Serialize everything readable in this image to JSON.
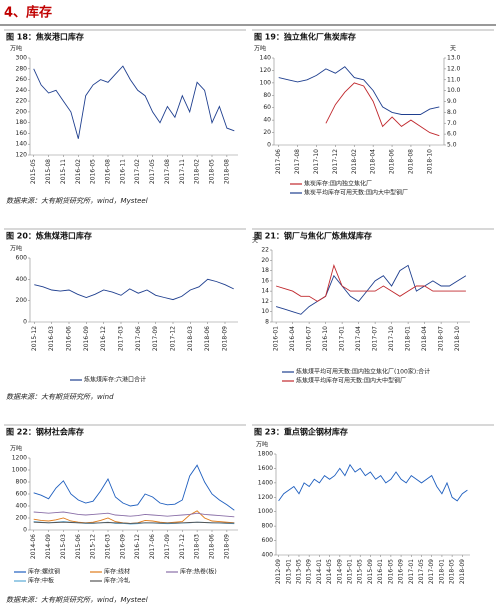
{
  "header": {
    "title": "4、库存"
  },
  "chart_data": [
    {
      "type": "line",
      "title": "图 18：焦炭港口库存",
      "unit": "万吨",
      "source": "数据来源：大有期货研究所，wind，Mysteel",
      "categories": [
        "2015-05",
        null,
        "2015-08",
        null,
        "2015-11",
        null,
        "2016-02",
        null,
        "2016-05",
        null,
        "2016-08",
        null,
        "2016-11",
        null,
        "2017-02",
        null,
        "2017-05",
        null,
        "2017-08",
        null,
        "2017-11",
        null,
        "2018-02",
        null,
        "2018-05",
        null,
        "2018-08",
        null
      ],
      "series": [
        {
          "name": null,
          "color": "#1f3f8f",
          "values": [
            280,
            250,
            235,
            240,
            220,
            200,
            150,
            230,
            250,
            260,
            255,
            270,
            285,
            260,
            240,
            230,
            200,
            180,
            210,
            190,
            230,
            200,
            255,
            240,
            180,
            210,
            170,
            165
          ]
        }
      ],
      "ylim": [
        120,
        300
      ],
      "yticks": [
        120,
        140,
        160,
        180,
        200,
        220,
        240,
        260,
        280,
        300
      ]
    },
    {
      "type": "line",
      "title": "图 19：独立焦化厂焦炭库存",
      "unit": "万吨",
      "unit2": "天",
      "categories": [
        "2017-06",
        null,
        "2017-08",
        null,
        "2017-10",
        null,
        "2017-12",
        null,
        "2018-02",
        null,
        "2018-04",
        null,
        "2018-06",
        null,
        "2018-08",
        null,
        "2018-10",
        null
      ],
      "series": [
        {
          "name": "焦炭库存:国内独立焦化厂",
          "color": "#c0282d",
          "values": [
            null,
            null,
            null,
            null,
            null,
            35,
            65,
            85,
            100,
            95,
            70,
            30,
            45,
            30,
            40,
            30,
            20,
            15
          ]
        },
        {
          "name": "焦炭平均库存可用天数:国内大中型钢厂",
          "color": "#1f3f8f",
          "axis": "y2",
          "values": [
            11.2,
            11.0,
            10.8,
            11.0,
            11.4,
            12.0,
            11.6,
            12.2,
            11.2,
            11.0,
            10.0,
            8.5,
            8.0,
            7.8,
            7.8,
            7.8,
            8.3,
            8.5
          ]
        }
      ],
      "ylim": [
        0,
        140
      ],
      "yticks": [
        0,
        20,
        40,
        60,
        80,
        100,
        120,
        140
      ],
      "y2lim": [
        5,
        13
      ],
      "y2ticks": [
        {
          "value": 5,
          "label": "5.0"
        },
        {
          "value": 6,
          "label": "6.0"
        },
        {
          "value": 7,
          "label": "7.0"
        },
        {
          "value": 8,
          "label": "8.0"
        },
        {
          "value": 9,
          "label": "9.0"
        },
        {
          "value": 10,
          "label": "10.0"
        },
        {
          "value": 11,
          "label": "11.0"
        },
        {
          "value": 12,
          "label": "12.0"
        },
        {
          "value": 13,
          "label": "13.0"
        }
      ]
    },
    {
      "type": "line",
      "title": "图 20：炼焦煤港口库存",
      "unit": "万吨",
      "source": "数据来源：大有期货研究所，wind",
      "categories": [
        "2015-12",
        null,
        "2016-03",
        null,
        "2016-06",
        null,
        "2016-09",
        null,
        "2016-12",
        null,
        "2017-03",
        null,
        "2017-06",
        null,
        "2017-09",
        null,
        "2017-12",
        null,
        "2018-03",
        null,
        "2018-06",
        null,
        "2018-09",
        null
      ],
      "series": [
        {
          "name": "炼焦煤库存:六港口合计",
          "color": "#1f3f8f",
          "values": [
            350,
            330,
            300,
            290,
            300,
            260,
            230,
            260,
            300,
            280,
            250,
            310,
            270,
            300,
            250,
            230,
            210,
            240,
            300,
            330,
            400,
            380,
            350,
            310
          ]
        }
      ],
      "ylim": [
        0,
        600
      ],
      "yticks": [
        0,
        200,
        400,
        600
      ]
    },
    {
      "type": "line",
      "title": "图 21：钢厂与焦化厂炼焦煤库存",
      "unit": "天",
      "categories": [
        "2016-01",
        null,
        "2016-04",
        null,
        "2016-07",
        null,
        "2016-10",
        null,
        "2017-01",
        null,
        "2017-04",
        null,
        "2017-07",
        null,
        "2017-10",
        null,
        "2018-01",
        null,
        "2018-04",
        null,
        "2018-07",
        null,
        "2018-10",
        null
      ],
      "series": [
        {
          "name": "炼焦煤平均可用天数:国内独立焦化厂(100家):合计",
          "color": "#1f3f8f",
          "values": [
            11,
            10.5,
            10,
            9.5,
            11,
            12,
            13,
            17,
            15,
            13,
            12,
            14,
            16,
            17,
            15,
            18,
            19,
            14,
            15,
            16,
            15,
            15,
            16,
            17
          ]
        },
        {
          "name": "炼焦煤平均库存可用天数:国内大中型钢厂",
          "color": "#c0282d",
          "values": [
            15,
            14.5,
            14,
            13,
            13,
            12,
            13,
            19,
            15,
            14,
            14,
            14,
            14,
            15,
            14,
            13,
            14,
            15,
            15,
            14,
            14,
            14,
            14,
            14
          ]
        }
      ],
      "ylim": [
        8,
        22
      ],
      "yticks": [
        8,
        10,
        12,
        14,
        16,
        18,
        20,
        22
      ]
    },
    {
      "type": "line",
      "title": "图 22：钢材社会库存",
      "unit": "万吨",
      "source": "数据来源：大有期货研究所，wind，Mysteel",
      "categories": [
        "2014-06",
        null,
        "2014-09",
        null,
        "2015-03",
        null,
        "2015-06",
        null,
        "2015-12",
        null,
        "2016-03",
        null,
        "2016-09",
        null,
        "2016-12",
        null,
        "2017-06",
        null,
        "2017-09",
        null,
        "2017-12",
        null,
        "2018-03",
        null,
        "2018-06",
        null,
        "2018-09",
        null
      ],
      "series": [
        {
          "name": "库存:螺纹钢",
          "color": "#1f5fbf",
          "values": [
            620,
            580,
            520,
            700,
            820,
            600,
            500,
            450,
            480,
            650,
            850,
            550,
            450,
            400,
            420,
            600,
            550,
            450,
            420,
            430,
            500,
            900,
            1080,
            800,
            600,
            500,
            420,
            330
          ]
        },
        {
          "name": "库存:线材",
          "color": "#e07b1a",
          "values": [
            180,
            160,
            150,
            170,
            200,
            150,
            130,
            120,
            130,
            160,
            200,
            140,
            120,
            110,
            120,
            160,
            150,
            130,
            120,
            130,
            140,
            250,
            320,
            200,
            150,
            140,
            130,
            120
          ]
        },
        {
          "name": "库存:热卷(板)",
          "color": "#8a6fa8",
          "values": [
            300,
            290,
            280,
            290,
            300,
            280,
            260,
            250,
            260,
            270,
            280,
            250,
            240,
            230,
            240,
            260,
            250,
            240,
            230,
            240,
            250,
            260,
            280,
            260,
            250,
            240,
            230,
            220
          ]
        },
        {
          "name": "库存:中板",
          "color": "#5aa9d6",
          "values": [
            140,
            130,
            120,
            130,
            140,
            130,
            120,
            110,
            110,
            120,
            130,
            110,
            110,
            100,
            105,
            120,
            115,
            110,
            105,
            110,
            115,
            120,
            130,
            125,
            120,
            115,
            110,
            105
          ]
        },
        {
          "name": "库存:冷轧",
          "color": "#555555",
          "values": [
            130,
            125,
            120,
            125,
            130,
            125,
            120,
            115,
            115,
            120,
            125,
            120,
            115,
            110,
            115,
            120,
            120,
            115,
            115,
            115,
            120,
            125,
            130,
            125,
            120,
            120,
            115,
            115
          ]
        }
      ],
      "ylim": [
        0,
        1200
      ],
      "yticks": [
        0,
        200,
        400,
        600,
        800,
        1000,
        1200
      ]
    },
    {
      "type": "line",
      "title": "图 23：重点钢企钢材库存",
      "unit": "万吨",
      "categories": [
        "2012-09",
        null,
        "2013-01",
        null,
        "2013-05",
        null,
        "2013-09",
        null,
        "2014-01",
        null,
        "2014-05",
        null,
        "2014-09",
        null,
        "2015-01",
        null,
        "2015-05",
        null,
        "2015-09",
        null,
        "2016-01",
        null,
        "2016-05",
        null,
        "2016-09",
        null,
        "2017-01",
        null,
        "2017-05",
        null,
        "2017-09",
        null,
        "2018-01",
        null,
        "2018-05",
        null,
        "2018-09",
        null
      ],
      "series": [
        {
          "name": null,
          "color": "#1f5fbf",
          "values": [
            1150,
            1250,
            1300,
            1350,
            1250,
            1400,
            1350,
            1450,
            1400,
            1500,
            1450,
            1500,
            1600,
            1500,
            1650,
            1550,
            1600,
            1500,
            1550,
            1450,
            1500,
            1400,
            1450,
            1550,
            1450,
            1400,
            1500,
            1450,
            1400,
            1450,
            1500,
            1350,
            1250,
            1400,
            1200,
            1150,
            1250,
            1300
          ]
        }
      ],
      "ylim": [
        400,
        1800
      ],
      "yticks": [
        400,
        600,
        800,
        1000,
        1200,
        1400,
        1600,
        1800
      ]
    }
  ]
}
